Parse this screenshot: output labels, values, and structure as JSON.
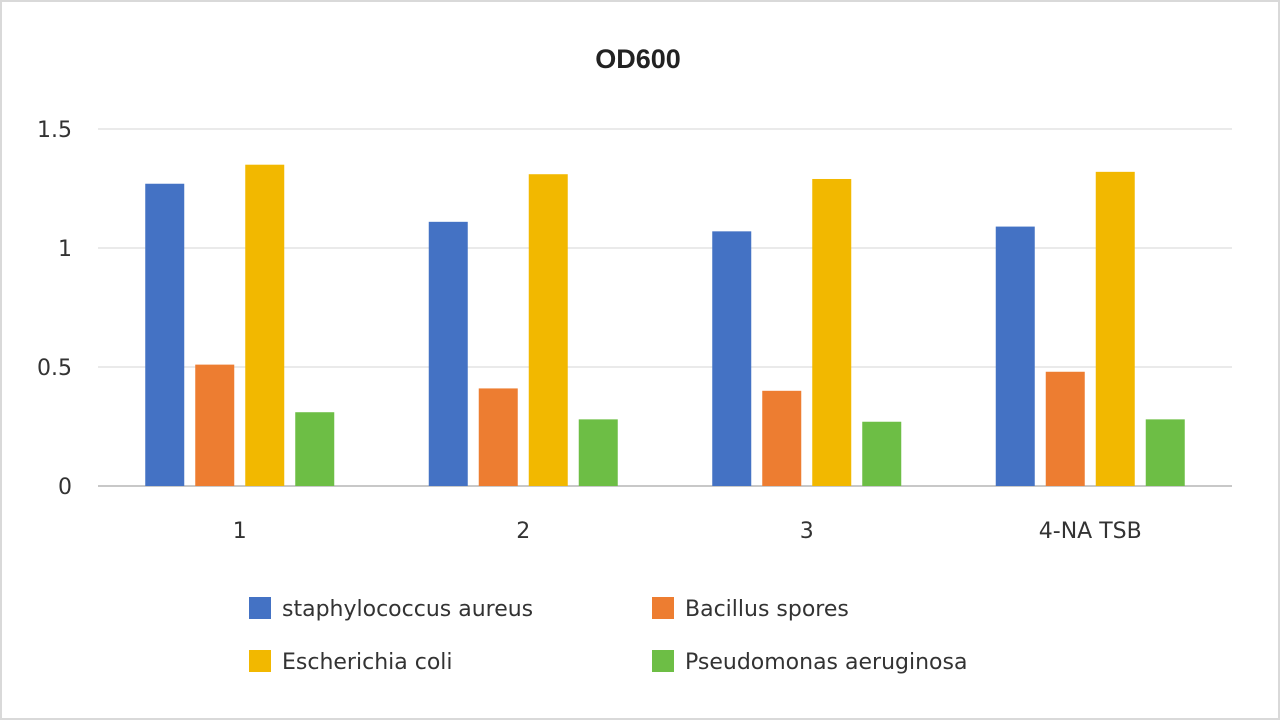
{
  "chart_data": {
    "type": "bar",
    "title": "OD600",
    "xlabel": "",
    "ylabel": "",
    "categories": [
      "1",
      "2",
      "3",
      "4-NA TSB"
    ],
    "ylim": [
      0,
      1.5
    ],
    "yticks": [
      "0",
      "0.5",
      "1",
      "1.5"
    ],
    "grid": true,
    "legend_position": "bottom",
    "series": [
      {
        "name": "staphylococcus aureus",
        "color": "#4472C4",
        "values": [
          1.27,
          1.11,
          1.07,
          1.09
        ]
      },
      {
        "name": "Bacillus spores",
        "color": "#ED7D31",
        "values": [
          0.51,
          0.41,
          0.4,
          0.48
        ]
      },
      {
        "name": "Escherichia coli",
        "color": "#F2B800",
        "values": [
          1.35,
          1.31,
          1.29,
          1.32
        ]
      },
      {
        "name": "Pseudomonas aeruginosa",
        "color": "#6DBE45",
        "values": [
          0.31,
          0.28,
          0.27,
          0.28
        ]
      }
    ]
  }
}
